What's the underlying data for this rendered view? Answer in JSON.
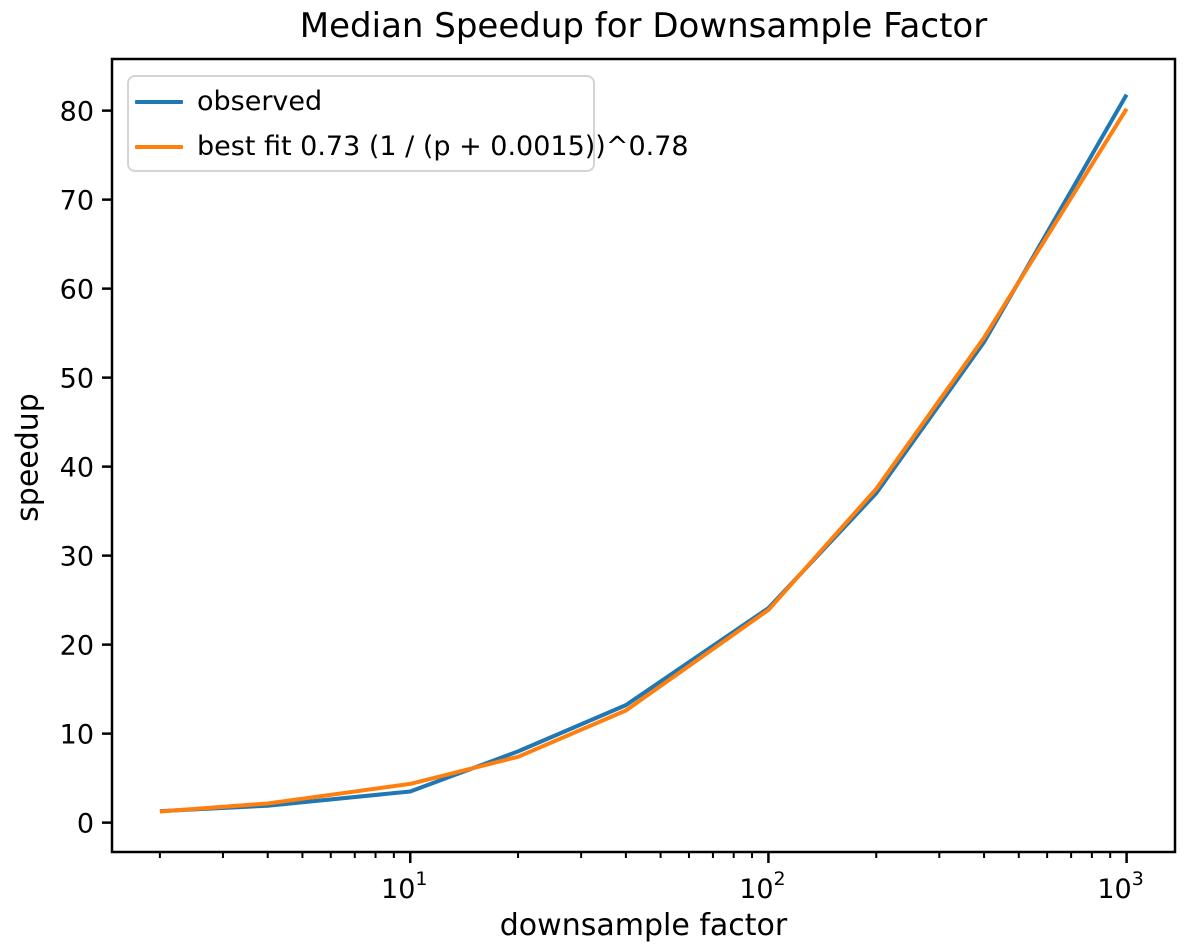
{
  "figure": {
    "background": "#ffffff",
    "axis_color": "#000000",
    "legend_border_color": "#d4d4d4"
  },
  "chart_data": {
    "type": "line",
    "title": "Median Speedup for Downsample Factor",
    "xlabel": "downsample factor",
    "ylabel": "speedup",
    "x_scale": "log",
    "xlim": [
      1.47,
      1365
    ],
    "ylim": [
      -3.3,
      85.8
    ],
    "grid": false,
    "legend_position": "upper left",
    "x": [
      2,
      4,
      10,
      20,
      40,
      100,
      200,
      400,
      1000
    ],
    "series": [
      {
        "name": "observed",
        "color": "#1f77b4",
        "values": [
          1.3,
          1.9,
          3.5,
          8.0,
          13.2,
          24.1,
          37.0,
          54.0,
          81.8
        ]
      },
      {
        "name": "best fit 0.73 (1 / (p + 0.0015))^0.78",
        "color": "#ff7f0e",
        "values": [
          1.25,
          2.15,
          4.35,
          7.4,
          12.6,
          23.9,
          37.5,
          54.5,
          80.2
        ]
      }
    ],
    "y_ticks": [
      0,
      10,
      20,
      30,
      40,
      50,
      60,
      70,
      80
    ],
    "x_major_ticks": [
      {
        "value": 10,
        "base": "10",
        "exponent": "1"
      },
      {
        "value": 100,
        "base": "10",
        "exponent": "2"
      },
      {
        "value": 1000,
        "base": "10",
        "exponent": "3"
      }
    ]
  }
}
